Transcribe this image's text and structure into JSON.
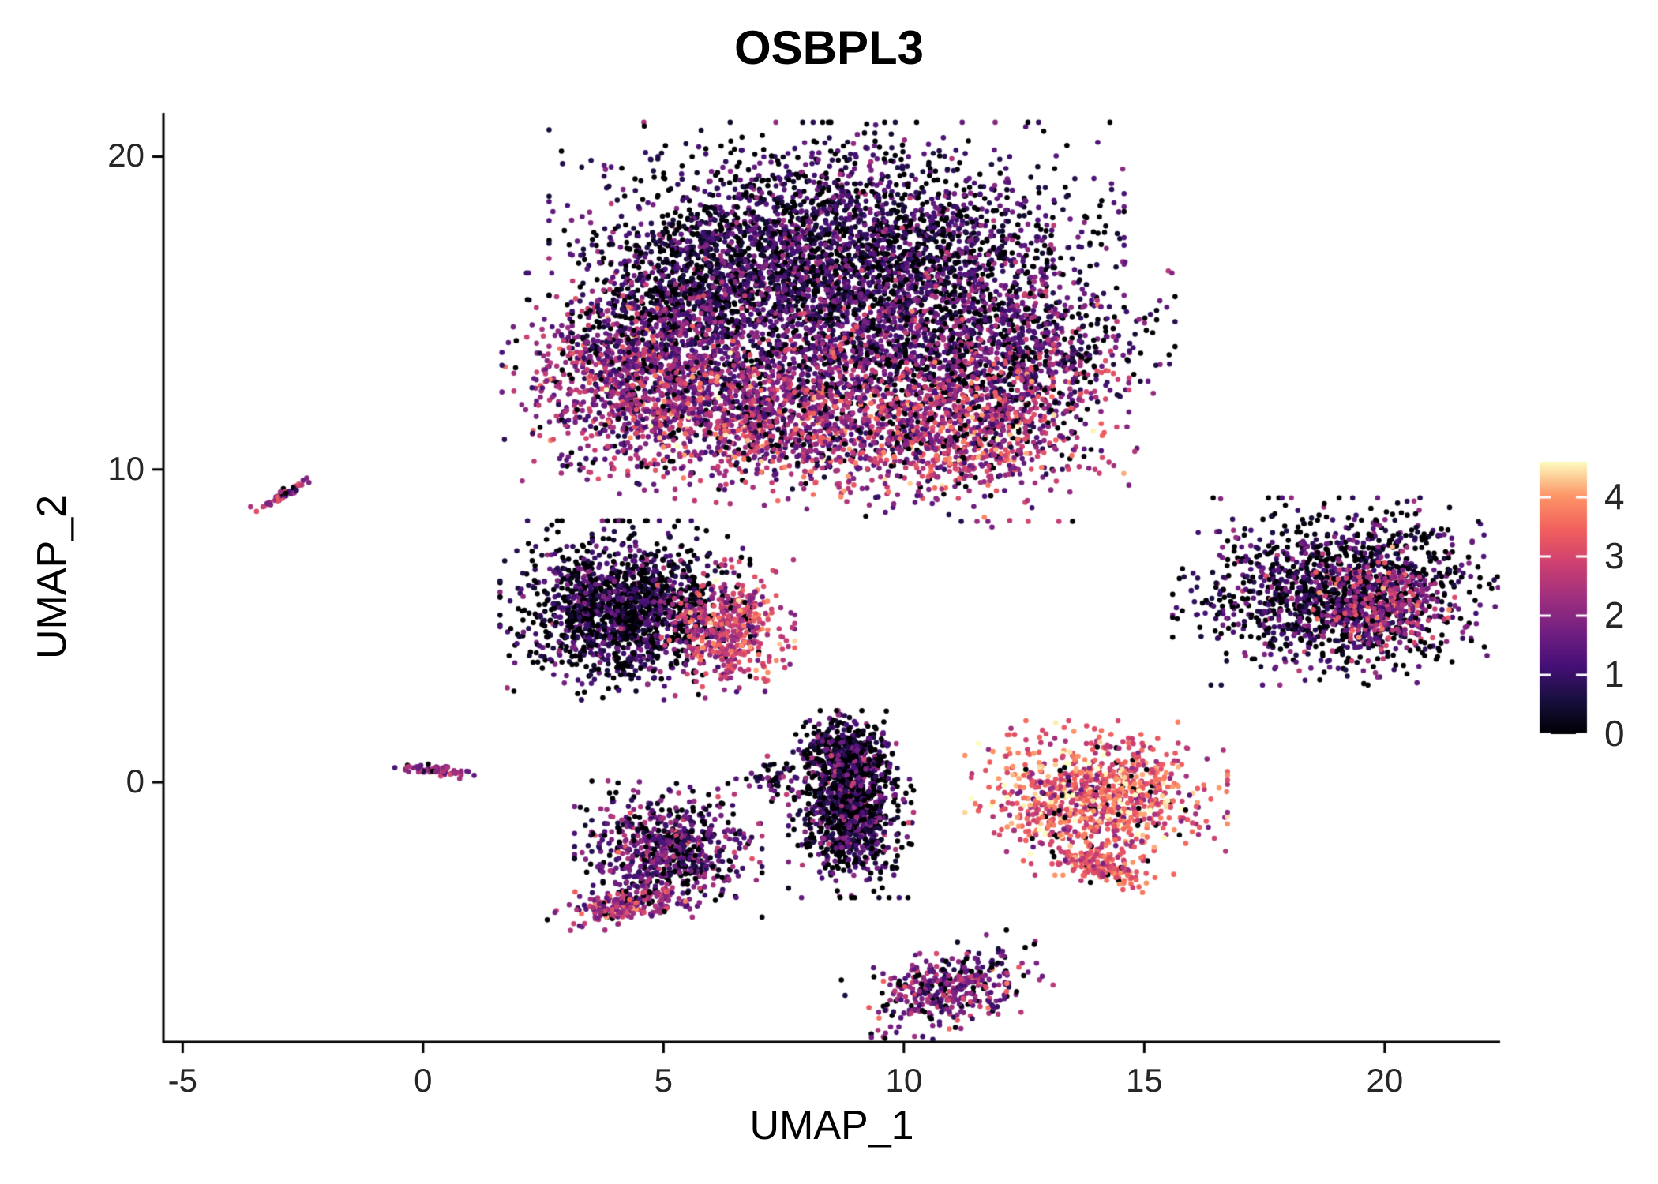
{
  "title": "OSBPL3",
  "colors": {
    "background": "#ffffff",
    "axis": "#000000",
    "text": "#000000",
    "tick_text": "#262626"
  },
  "chart_data": {
    "type": "scatter",
    "subtype": "umap-feature-plot",
    "title": "OSBPL3",
    "xlabel": "UMAP_1",
    "ylabel": "UMAP_2",
    "xlim": [
      -5.4,
      22.4
    ],
    "ylim": [
      -8.3,
      21.4
    ],
    "x_ticks": [
      -5,
      0,
      5,
      10,
      15,
      20
    ],
    "y_ticks": [
      0,
      10,
      20
    ],
    "grid": false,
    "point_radius_px": 3.3,
    "legend": {
      "type": "colorbar",
      "position": "right",
      "ticks": [
        0,
        1,
        2,
        3,
        4
      ],
      "min": 0,
      "max": 4.6,
      "colormap": "magma",
      "stops": [
        [
          0.0,
          "#000004"
        ],
        [
          0.125,
          "#180f3e"
        ],
        [
          0.25,
          "#451077"
        ],
        [
          0.375,
          "#721f81"
        ],
        [
          0.5,
          "#9f2f7f"
        ],
        [
          0.625,
          "#cd4071"
        ],
        [
          0.75,
          "#f1605d"
        ],
        [
          0.875,
          "#fd9567"
        ],
        [
          1.0,
          "#fcfdbf"
        ]
      ]
    },
    "seed": 42,
    "clusters": [
      {
        "name": "main-top-dark",
        "cx": 8.6,
        "cy": 17.2,
        "sx": 2.3,
        "sy": 1.5,
        "rot": 0,
        "n": 2600,
        "zero_frac": 0.25,
        "mean": 1.0,
        "sd": 0.7
      },
      {
        "name": "main-topleft-arm",
        "cx": 5.3,
        "cy": 15.6,
        "sx": 0.9,
        "sy": 1.1,
        "rot": -20,
        "n": 500,
        "zero_frac": 0.25,
        "mean": 0.9,
        "sd": 0.6
      },
      {
        "name": "main-left-lobe",
        "cx": 4.5,
        "cy": 12.9,
        "sx": 1.1,
        "sy": 1.3,
        "rot": 0,
        "n": 1000,
        "zero_frac": 0.1,
        "mean": 2.0,
        "sd": 0.8
      },
      {
        "name": "main-mid-band",
        "cx": 8.3,
        "cy": 13.9,
        "sx": 2.0,
        "sy": 1.4,
        "rot": 0,
        "n": 1600,
        "zero_frac": 0.18,
        "mean": 1.4,
        "sd": 0.8
      },
      {
        "name": "main-right-lobe",
        "cx": 12.0,
        "cy": 13.9,
        "sx": 1.4,
        "sy": 1.5,
        "rot": 0,
        "n": 1100,
        "zero_frac": 0.2,
        "mean": 1.5,
        "sd": 0.9
      },
      {
        "name": "main-lower-band",
        "cx": 7.3,
        "cy": 11.4,
        "sx": 1.9,
        "sy": 1.0,
        "rot": -8,
        "n": 1100,
        "zero_frac": 0.08,
        "mean": 2.3,
        "sd": 0.9
      },
      {
        "name": "main-lowerright",
        "cx": 11.3,
        "cy": 11.2,
        "sx": 1.3,
        "sy": 1.1,
        "rot": 0,
        "n": 800,
        "zero_frac": 0.1,
        "mean": 2.5,
        "sd": 0.9
      },
      {
        "name": "left-streak",
        "cx": -2.9,
        "cy": 9.2,
        "sx": 0.3,
        "sy": 0.06,
        "rot": 40,
        "n": 45,
        "zero_frac": 0.1,
        "mean": 2.0,
        "sd": 0.6
      },
      {
        "name": "midleft-dark",
        "cx": 4.2,
        "cy": 5.5,
        "sx": 1.0,
        "sy": 1.1,
        "rot": 0,
        "n": 1500,
        "zero_frac": 0.35,
        "mean": 0.8,
        "sd": 0.7
      },
      {
        "name": "midleft-bright-edge",
        "cx": 6.3,
        "cy": 4.9,
        "sx": 0.55,
        "sy": 0.85,
        "rot": 0,
        "n": 450,
        "zero_frac": 0.05,
        "mean": 2.8,
        "sd": 0.7
      },
      {
        "name": "right-cluster",
        "cx": 19.1,
        "cy": 6.1,
        "sx": 1.35,
        "sy": 1.15,
        "rot": 0,
        "n": 1400,
        "zero_frac": 0.3,
        "mean": 1.0,
        "sd": 0.8
      },
      {
        "name": "right-cluster-pink",
        "cx": 19.9,
        "cy": 5.7,
        "sx": 0.6,
        "sy": 0.7,
        "rot": 0,
        "n": 260,
        "zero_frac": 0.08,
        "mean": 2.4,
        "sd": 0.7
      },
      {
        "name": "origin-streak",
        "cx": 0.2,
        "cy": 0.4,
        "sx": 0.38,
        "sy": 0.09,
        "rot": -8,
        "n": 70,
        "zero_frac": 0.08,
        "mean": 2.0,
        "sd": 0.6
      },
      {
        "name": "lower-mid",
        "cx": 5.1,
        "cy": -2.1,
        "sx": 0.75,
        "sy": 0.85,
        "rot": 0,
        "n": 750,
        "zero_frac": 0.18,
        "mean": 1.5,
        "sd": 0.8
      },
      {
        "name": "lower-mid-tail",
        "cx": 4.2,
        "cy": -3.9,
        "sx": 0.65,
        "sy": 0.28,
        "rot": 20,
        "n": 200,
        "zero_frac": 0.08,
        "mean": 2.4,
        "sd": 0.7
      },
      {
        "name": "small-sparse",
        "cx": 7.3,
        "cy": 0.1,
        "sx": 0.28,
        "sy": 0.32,
        "rot": 0,
        "n": 50,
        "zero_frac": 0.3,
        "mean": 0.9,
        "sd": 0.7
      },
      {
        "name": "vertical-dark",
        "cx": 8.9,
        "cy": -0.7,
        "sx": 0.5,
        "sy": 1.15,
        "rot": 0,
        "n": 1000,
        "zero_frac": 0.3,
        "mean": 1.0,
        "sd": 0.8
      },
      {
        "name": "vertical-dark-top",
        "cx": 8.8,
        "cy": 0.9,
        "sx": 0.45,
        "sy": 0.45,
        "rot": 0,
        "n": 280,
        "zero_frac": 0.35,
        "mean": 0.9,
        "sd": 0.8
      },
      {
        "name": "bright-cluster",
        "cx": 14.0,
        "cy": -0.5,
        "sx": 1.05,
        "sy": 0.95,
        "rot": 0,
        "n": 950,
        "zero_frac": 0.04,
        "mean": 3.3,
        "sd": 0.8
      },
      {
        "name": "bright-hook",
        "cx": 14.1,
        "cy": -2.7,
        "sx": 0.55,
        "sy": 0.25,
        "rot": -30,
        "n": 160,
        "zero_frac": 0.04,
        "mean": 3.2,
        "sd": 0.6
      },
      {
        "name": "bottom-cluster",
        "cx": 11.0,
        "cy": -6.6,
        "sx": 0.85,
        "sy": 0.5,
        "rot": 25,
        "n": 380,
        "zero_frac": 0.15,
        "mean": 1.8,
        "sd": 0.8
      }
    ]
  }
}
